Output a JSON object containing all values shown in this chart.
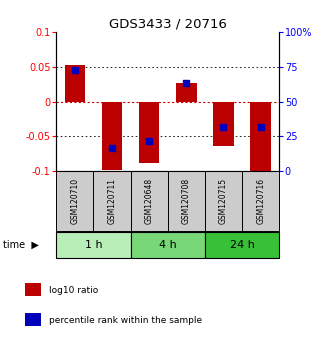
{
  "title": "GDS3433 / 20716",
  "samples": [
    "GSM120710",
    "GSM120711",
    "GSM120648",
    "GSM120708",
    "GSM120715",
    "GSM120716"
  ],
  "groups": [
    {
      "label": "1 h",
      "indices": [
        0,
        1
      ],
      "color": "#b8eeb8"
    },
    {
      "label": "4 h",
      "indices": [
        2,
        3
      ],
      "color": "#78d878"
    },
    {
      "label": "24 h",
      "indices": [
        4,
        5
      ],
      "color": "#38c038"
    }
  ],
  "log10_ratio": [
    0.053,
    -0.098,
    -0.088,
    0.027,
    -0.064,
    -0.099
  ],
  "percentile_rank": [
    0.73,
    0.17,
    0.22,
    0.63,
    0.32,
    0.32
  ],
  "ylim_left": [
    -0.1,
    0.1
  ],
  "ylim_right": [
    0,
    100
  ],
  "yticks_left": [
    -0.1,
    -0.05,
    0,
    0.05,
    0.1
  ],
  "yticks_right": [
    0,
    25,
    50,
    75,
    100
  ],
  "bar_color": "#bb0000",
  "dot_color": "#0000bb",
  "bar_width": 0.55,
  "dot_size": 18,
  "zero_line_color": "#cc0000",
  "bg_color": "white",
  "sample_box_color": "#cccccc",
  "legend_log10_color": "#bb0000",
  "legend_pct_color": "#0000bb",
  "legend_items": [
    "log10 ratio",
    "percentile rank within the sample"
  ],
  "title_fontsize": 9.5,
  "tick_fontsize": 7,
  "sample_fontsize": 5.5,
  "group_fontsize": 8,
  "legend_fontsize": 6.5
}
